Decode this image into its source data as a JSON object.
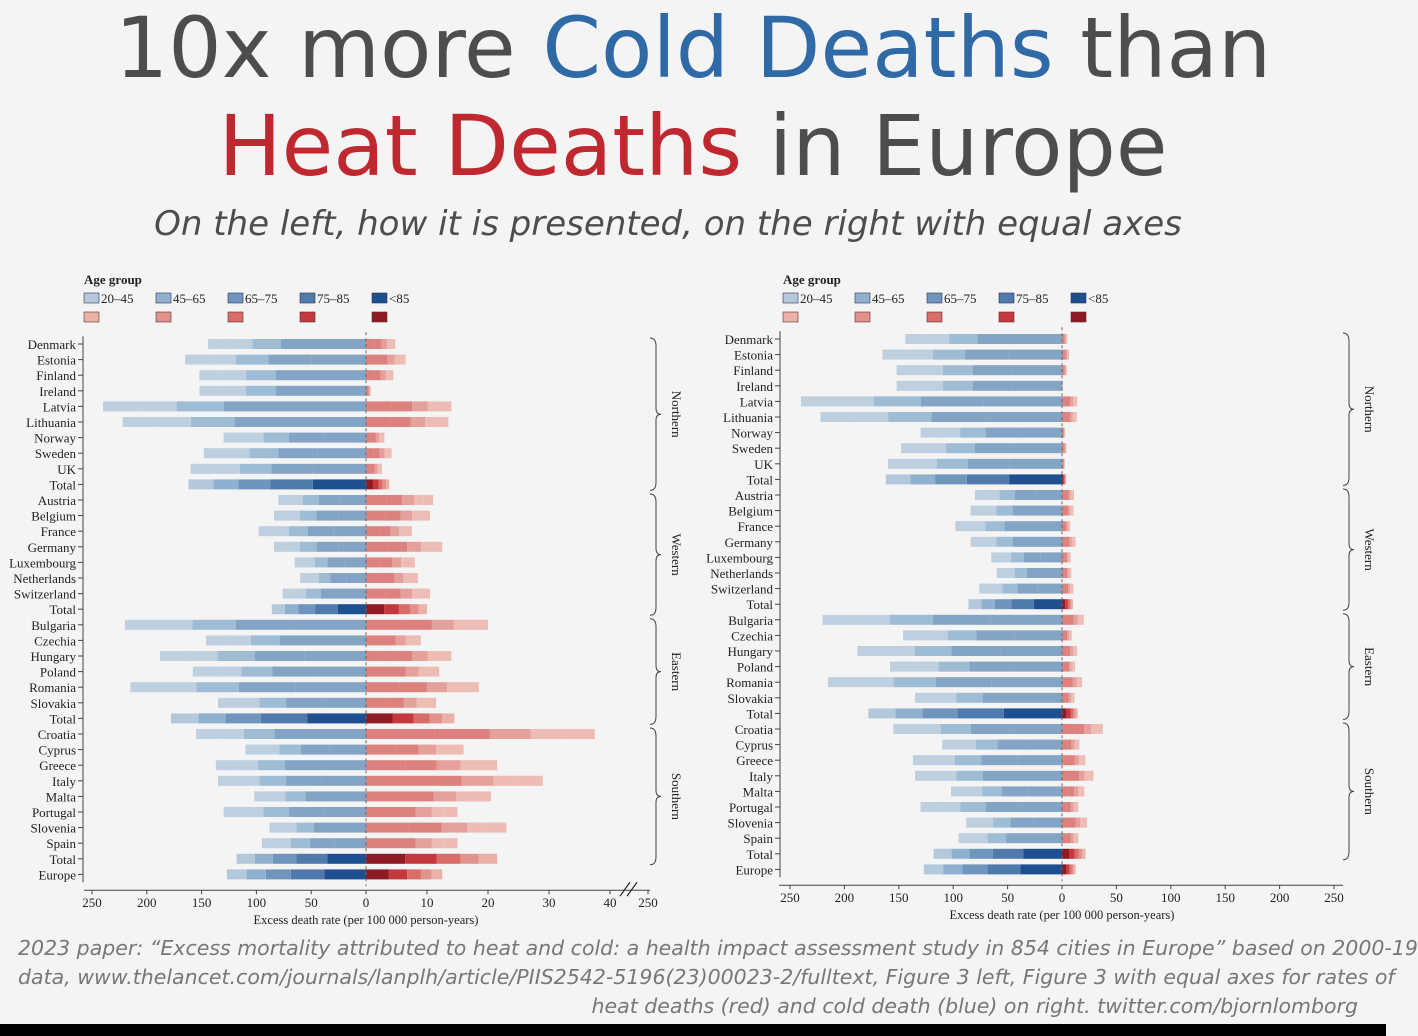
{
  "title": {
    "line1_pre": "10x more ",
    "line1_cold": "Cold Deaths",
    "line1_post": " than",
    "line2_heat": "Heat Deaths",
    "line2_post": " in Europe"
  },
  "subtitle": "On the left, how it is presented, on the right with equal axes",
  "citation": [
    "2023 paper: “Excess mortality attributed to heat and cold: a health impact assessment study in 854 cities in Europe” based on 2000-19",
    "data, www.thelancet.com/journals/lanplh/article/PIIS2542-5196(23)00023-2/fulltext, Figure 3 left, Figure 3 with equal axes for rates of",
    "heat deaths (red) and cold death (blue) on right. twitter.com/bjornlomborg"
  ],
  "colors": {
    "cold": [
      "#b4c8db",
      "#8fb1cf",
      "#6f95bc",
      "#4f7aab",
      "#1e4f8f"
    ],
    "heat": [
      "#ebb1a8",
      "#e0928b",
      "#d76c68",
      "#c5383e",
      "#8e1a24"
    ]
  },
  "chart_data": [
    {
      "type": "bar",
      "orientation": "horizontal-diverging",
      "legend_title": "Age group",
      "legend": [
        "20–45",
        "45–65",
        "65–75",
        "75–85",
        "<85"
      ],
      "xlabel": "Excess death rate (per 100 000 person-years)",
      "cold_axis": {
        "ticks": [
          250,
          200,
          150,
          100,
          50,
          0
        ],
        "range": [
          0,
          250
        ]
      },
      "heat_axis": {
        "ticks": [
          0,
          10,
          20,
          30,
          40
        ],
        "range": [
          0,
          40
        ],
        "break_tick": "250"
      },
      "regions": [
        {
          "name": "Northern",
          "rows": [
            {
              "label": "Denmark",
              "cold": 144,
              "heat": 4.8
            },
            {
              "label": "Estonia",
              "cold": 165,
              "heat": 6.5
            },
            {
              "label": "Finland",
              "cold": 152,
              "heat": 4.5
            },
            {
              "label": "Ireland",
              "cold": 152,
              "heat": 0.8
            },
            {
              "label": "Latvia",
              "cold": 240,
              "heat": 14
            },
            {
              "label": "Lithuania",
              "cold": 222,
              "heat": 13.5
            },
            {
              "label": "Norway",
              "cold": 130,
              "heat": 3
            },
            {
              "label": "Sweden",
              "cold": 148,
              "heat": 4.2
            },
            {
              "label": "UK",
              "cold": 160,
              "heat": 2.6
            },
            {
              "label": "Total",
              "cold": 162,
              "heat": 3.8,
              "total": true
            }
          ]
        },
        {
          "name": "Western",
          "rows": [
            {
              "label": "Austria",
              "cold": 80,
              "heat": 11
            },
            {
              "label": "Belgium",
              "cold": 84,
              "heat": 10.5
            },
            {
              "label": "France",
              "cold": 98,
              "heat": 7.5
            },
            {
              "label": "Germany",
              "cold": 84,
              "heat": 12.5
            },
            {
              "label": "Luxembourg",
              "cold": 65,
              "heat": 8
            },
            {
              "label": "Netherlands",
              "cold": 60,
              "heat": 8.5
            },
            {
              "label": "Switzerland",
              "cold": 76,
              "heat": 10.5
            },
            {
              "label": "Total",
              "cold": 86,
              "heat": 10,
              "total": true
            }
          ]
        },
        {
          "name": "Eastern",
          "rows": [
            {
              "label": "Bulgaria",
              "cold": 220,
              "heat": 20
            },
            {
              "label": "Czechia",
              "cold": 146,
              "heat": 9
            },
            {
              "label": "Hungary",
              "cold": 188,
              "heat": 14
            },
            {
              "label": "Poland",
              "cold": 158,
              "heat": 12
            },
            {
              "label": "Romania",
              "cold": 215,
              "heat": 18.5
            },
            {
              "label": "Slovakia",
              "cold": 135,
              "heat": 11.5
            },
            {
              "label": "Total",
              "cold": 178,
              "heat": 14.5,
              "total": true
            }
          ]
        },
        {
          "name": "Southern",
          "rows": [
            {
              "label": "Croatia",
              "cold": 155,
              "heat": 37.5
            },
            {
              "label": "Cyprus",
              "cold": 110,
              "heat": 16
            },
            {
              "label": "Greece",
              "cold": 137,
              "heat": 21.5
            },
            {
              "label": "Italy",
              "cold": 135,
              "heat": 29
            },
            {
              "label": "Malta",
              "cold": 102,
              "heat": 20.5
            },
            {
              "label": "Portugal",
              "cold": 130,
              "heat": 15
            },
            {
              "label": "Slovenia",
              "cold": 88,
              "heat": 23
            },
            {
              "label": "Spain",
              "cold": 95,
              "heat": 15
            },
            {
              "label": "Total",
              "cold": 118,
              "heat": 21.5,
              "total": true
            }
          ]
        }
      ],
      "europe": {
        "label": "Europe",
        "cold": 127,
        "heat": 12.5,
        "total": true
      }
    },
    {
      "type": "bar",
      "orientation": "horizontal-diverging",
      "legend_title": "Age group",
      "legend": [
        "20–45",
        "45–65",
        "65–75",
        "75–85",
        "<85"
      ],
      "xlabel": "Excess death rate (per 100 000 person-years)",
      "axis": {
        "ticks": [
          250,
          200,
          150,
          100,
          50,
          0,
          50,
          100,
          150,
          200,
          250
        ],
        "range": [
          -250,
          250
        ]
      },
      "same_data_as": "left"
    }
  ]
}
